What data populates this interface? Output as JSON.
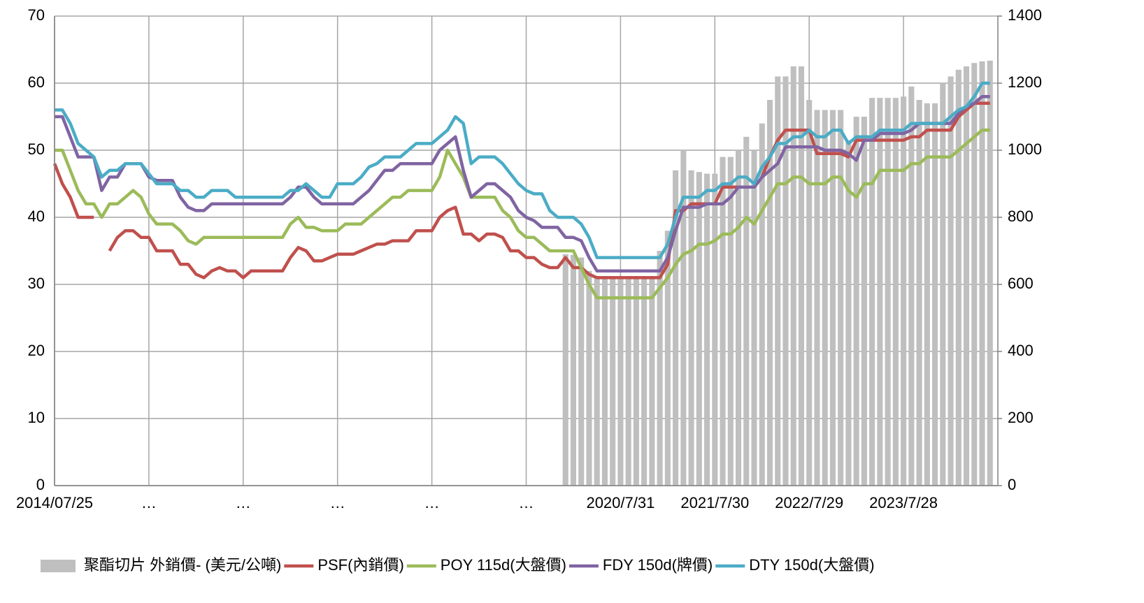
{
  "chart_data": {
    "type": "combo",
    "categories": [
      "2014/07/25",
      null,
      null,
      null,
      null,
      null,
      null,
      null,
      null,
      null,
      null,
      null,
      "…",
      null,
      null,
      null,
      null,
      null,
      null,
      null,
      null,
      null,
      null,
      null,
      "…",
      null,
      null,
      null,
      null,
      null,
      null,
      null,
      null,
      null,
      null,
      null,
      "…",
      null,
      null,
      null,
      null,
      null,
      null,
      null,
      null,
      null,
      null,
      null,
      "…",
      null,
      null,
      null,
      null,
      null,
      null,
      null,
      null,
      null,
      null,
      null,
      "…",
      null,
      null,
      null,
      null,
      null,
      null,
      null,
      null,
      null,
      null,
      null,
      "2020/7/31",
      null,
      null,
      null,
      null,
      null,
      null,
      null,
      null,
      null,
      null,
      null,
      "2021/7/30",
      null,
      null,
      null,
      null,
      null,
      null,
      null,
      null,
      null,
      null,
      null,
      "2022/7/29",
      null,
      null,
      null,
      null,
      null,
      null,
      null,
      null,
      null,
      null,
      null,
      "2023/7/28",
      null,
      null,
      null,
      null,
      null,
      null,
      null,
      null,
      null,
      null,
      null
    ],
    "series": [
      {
        "name": "聚酯切片 外銷價- (美元/公噸)",
        "type": "bar",
        "axis": "y2",
        "color": "#bfbfbf",
        "values": [
          null,
          null,
          null,
          null,
          null,
          null,
          null,
          null,
          null,
          null,
          null,
          null,
          null,
          null,
          null,
          null,
          null,
          null,
          null,
          null,
          null,
          null,
          null,
          null,
          null,
          null,
          null,
          null,
          null,
          null,
          null,
          null,
          null,
          null,
          null,
          null,
          null,
          null,
          null,
          null,
          null,
          null,
          null,
          null,
          null,
          null,
          null,
          null,
          null,
          null,
          null,
          null,
          null,
          null,
          null,
          null,
          null,
          null,
          null,
          null,
          null,
          null,
          null,
          null,
          null,
          690,
          688,
          680,
          640,
          625,
          625,
          625,
          625,
          625,
          625,
          625,
          625,
          700,
          760,
          940,
          1000,
          940,
          935,
          930,
          930,
          980,
          980,
          1000,
          1040,
          1000,
          1080,
          1150,
          1220,
          1220,
          1250,
          1250,
          1150,
          1120,
          1120,
          1120,
          1120,
          1030,
          1100,
          1100,
          1156,
          1156,
          1156,
          1156,
          1160,
          1190,
          1150,
          1140,
          1140,
          1200,
          1220,
          1240,
          1250,
          1260,
          1265,
          1267
        ]
      },
      {
        "name": "PSF(內銷價)",
        "type": "line",
        "color": "#c0504d",
        "values": [
          48,
          45,
          43,
          40,
          40,
          40,
          null,
          35,
          37,
          38,
          38,
          37,
          37,
          35,
          35,
          35,
          33,
          33,
          31.5,
          31,
          32,
          32.5,
          32,
          32,
          31,
          32,
          32,
          32,
          32,
          32,
          34,
          35.5,
          35,
          33.5,
          33.5,
          34,
          34.5,
          34.5,
          34.5,
          35,
          35.5,
          36,
          36,
          36.5,
          36.5,
          36.5,
          38,
          38,
          38,
          40,
          41,
          41.5,
          37.5,
          37.5,
          36.5,
          37.5,
          37.5,
          37,
          35,
          35,
          34,
          34,
          33,
          32.5,
          32.5,
          34,
          32.5,
          32.5,
          31.5,
          31,
          31,
          31,
          31,
          31,
          31,
          31,
          31,
          31,
          33,
          41,
          41,
          42,
          42,
          42,
          42,
          44.5,
          44.5,
          44.5,
          44.5,
          44.5,
          46,
          49,
          51.5,
          53,
          53,
          53,
          53,
          49.5,
          49.5,
          49.5,
          49.5,
          49,
          51.5,
          51.5,
          51.5,
          51.5,
          51.5,
          51.5,
          51.5,
          52,
          52,
          53,
          53,
          53,
          53,
          55,
          56,
          57,
          57,
          57
        ]
      },
      {
        "name": "POY 115d(大盤價)",
        "type": "line",
        "color": "#9bbb59",
        "values": [
          50,
          50,
          47,
          44,
          42,
          42,
          40,
          42,
          42,
          43,
          44,
          43,
          40.5,
          39,
          39,
          39,
          38,
          36.5,
          36,
          37,
          37,
          37,
          37,
          37,
          37,
          37,
          37,
          37,
          37,
          37,
          39,
          40,
          38.5,
          38.5,
          38,
          38,
          38,
          39,
          39,
          39,
          40,
          41,
          42,
          43,
          43,
          44,
          44,
          44,
          44,
          46,
          50,
          48,
          46,
          43,
          43,
          43,
          43,
          41,
          40,
          38,
          37,
          37,
          36,
          35,
          35,
          35,
          35,
          32.5,
          30,
          28,
          28,
          28,
          28,
          28,
          28,
          28,
          28,
          29.5,
          31,
          33,
          34.5,
          35,
          36,
          36,
          36.5,
          37.5,
          37.5,
          38.5,
          40,
          39,
          41,
          43,
          45,
          45,
          46,
          46,
          45,
          45,
          45,
          46,
          46,
          44,
          43,
          45,
          45,
          47,
          47,
          47,
          47,
          48,
          48,
          49,
          49,
          49,
          49,
          50,
          51,
          52,
          53,
          53
        ]
      },
      {
        "name": "FDY 150d(牌價)",
        "type": "line",
        "color": "#8064a2",
        "values": [
          55,
          55,
          52,
          49,
          49,
          49,
          44,
          46,
          46,
          48,
          48,
          48,
          46,
          45.5,
          45.5,
          45.5,
          43,
          41.5,
          41,
          41,
          42,
          42,
          42,
          42,
          42,
          42,
          42,
          42,
          42,
          42,
          43,
          44.5,
          44.5,
          43,
          42,
          42,
          42,
          42,
          42,
          43,
          44,
          45.5,
          47,
          47,
          48,
          48,
          48,
          48,
          48,
          50,
          51,
          52,
          47,
          43,
          44,
          45,
          45,
          44,
          43,
          41,
          40,
          39.5,
          38.5,
          38.5,
          38.5,
          37,
          37,
          36.5,
          34,
          32,
          32,
          32,
          32,
          32,
          32,
          32,
          32,
          32,
          34,
          38,
          41.5,
          41.5,
          41.5,
          42,
          42,
          42,
          43,
          44.5,
          44.5,
          44.5,
          46,
          47,
          48,
          50.5,
          50.5,
          50.5,
          50.5,
          50.5,
          50,
          50,
          50,
          49.5,
          48.5,
          51.5,
          51.5,
          52.5,
          52.5,
          52.5,
          52.5,
          53,
          54,
          54,
          54,
          54,
          54,
          55.5,
          56.5,
          57,
          58,
          58
        ]
      },
      {
        "name": "DTY 150d(大盤價)",
        "type": "line",
        "color": "#4bacc6",
        "values": [
          56,
          56,
          54,
          51,
          50,
          49,
          46,
          47,
          47,
          48,
          48,
          48,
          46.5,
          45,
          45,
          45,
          44,
          44,
          43,
          43,
          44,
          44,
          44,
          43,
          43,
          43,
          43,
          43,
          43,
          43,
          44,
          44,
          45,
          44,
          43,
          43,
          45,
          45,
          45,
          46,
          47.5,
          48,
          49,
          49,
          49,
          50,
          51,
          51,
          51,
          52,
          53,
          55,
          54,
          48,
          49,
          49,
          49,
          48,
          46.5,
          45,
          44,
          43.5,
          43.5,
          41,
          40,
          40,
          40,
          39,
          37,
          34,
          34,
          34,
          34,
          34,
          34,
          34,
          34,
          34,
          36,
          40,
          43,
          43,
          43,
          44,
          44,
          45,
          45,
          46,
          46,
          45,
          47.5,
          49,
          51,
          51,
          52,
          52,
          53,
          52,
          52,
          53,
          53,
          51,
          52,
          52,
          52,
          53,
          53,
          53,
          53,
          54,
          54,
          54,
          54,
          54,
          55,
          56,
          56.5,
          58,
          60,
          60
        ]
      }
    ],
    "ylim": [
      0,
      70
    ],
    "yticks": [
      0,
      10,
      20,
      30,
      40,
      50,
      60,
      70
    ],
    "y2lim": [
      0,
      1400
    ],
    "y2ticks": [
      0,
      200,
      400,
      600,
      800,
      1000,
      1200,
      1400
    ],
    "grid": true,
    "legend": "bottom"
  }
}
